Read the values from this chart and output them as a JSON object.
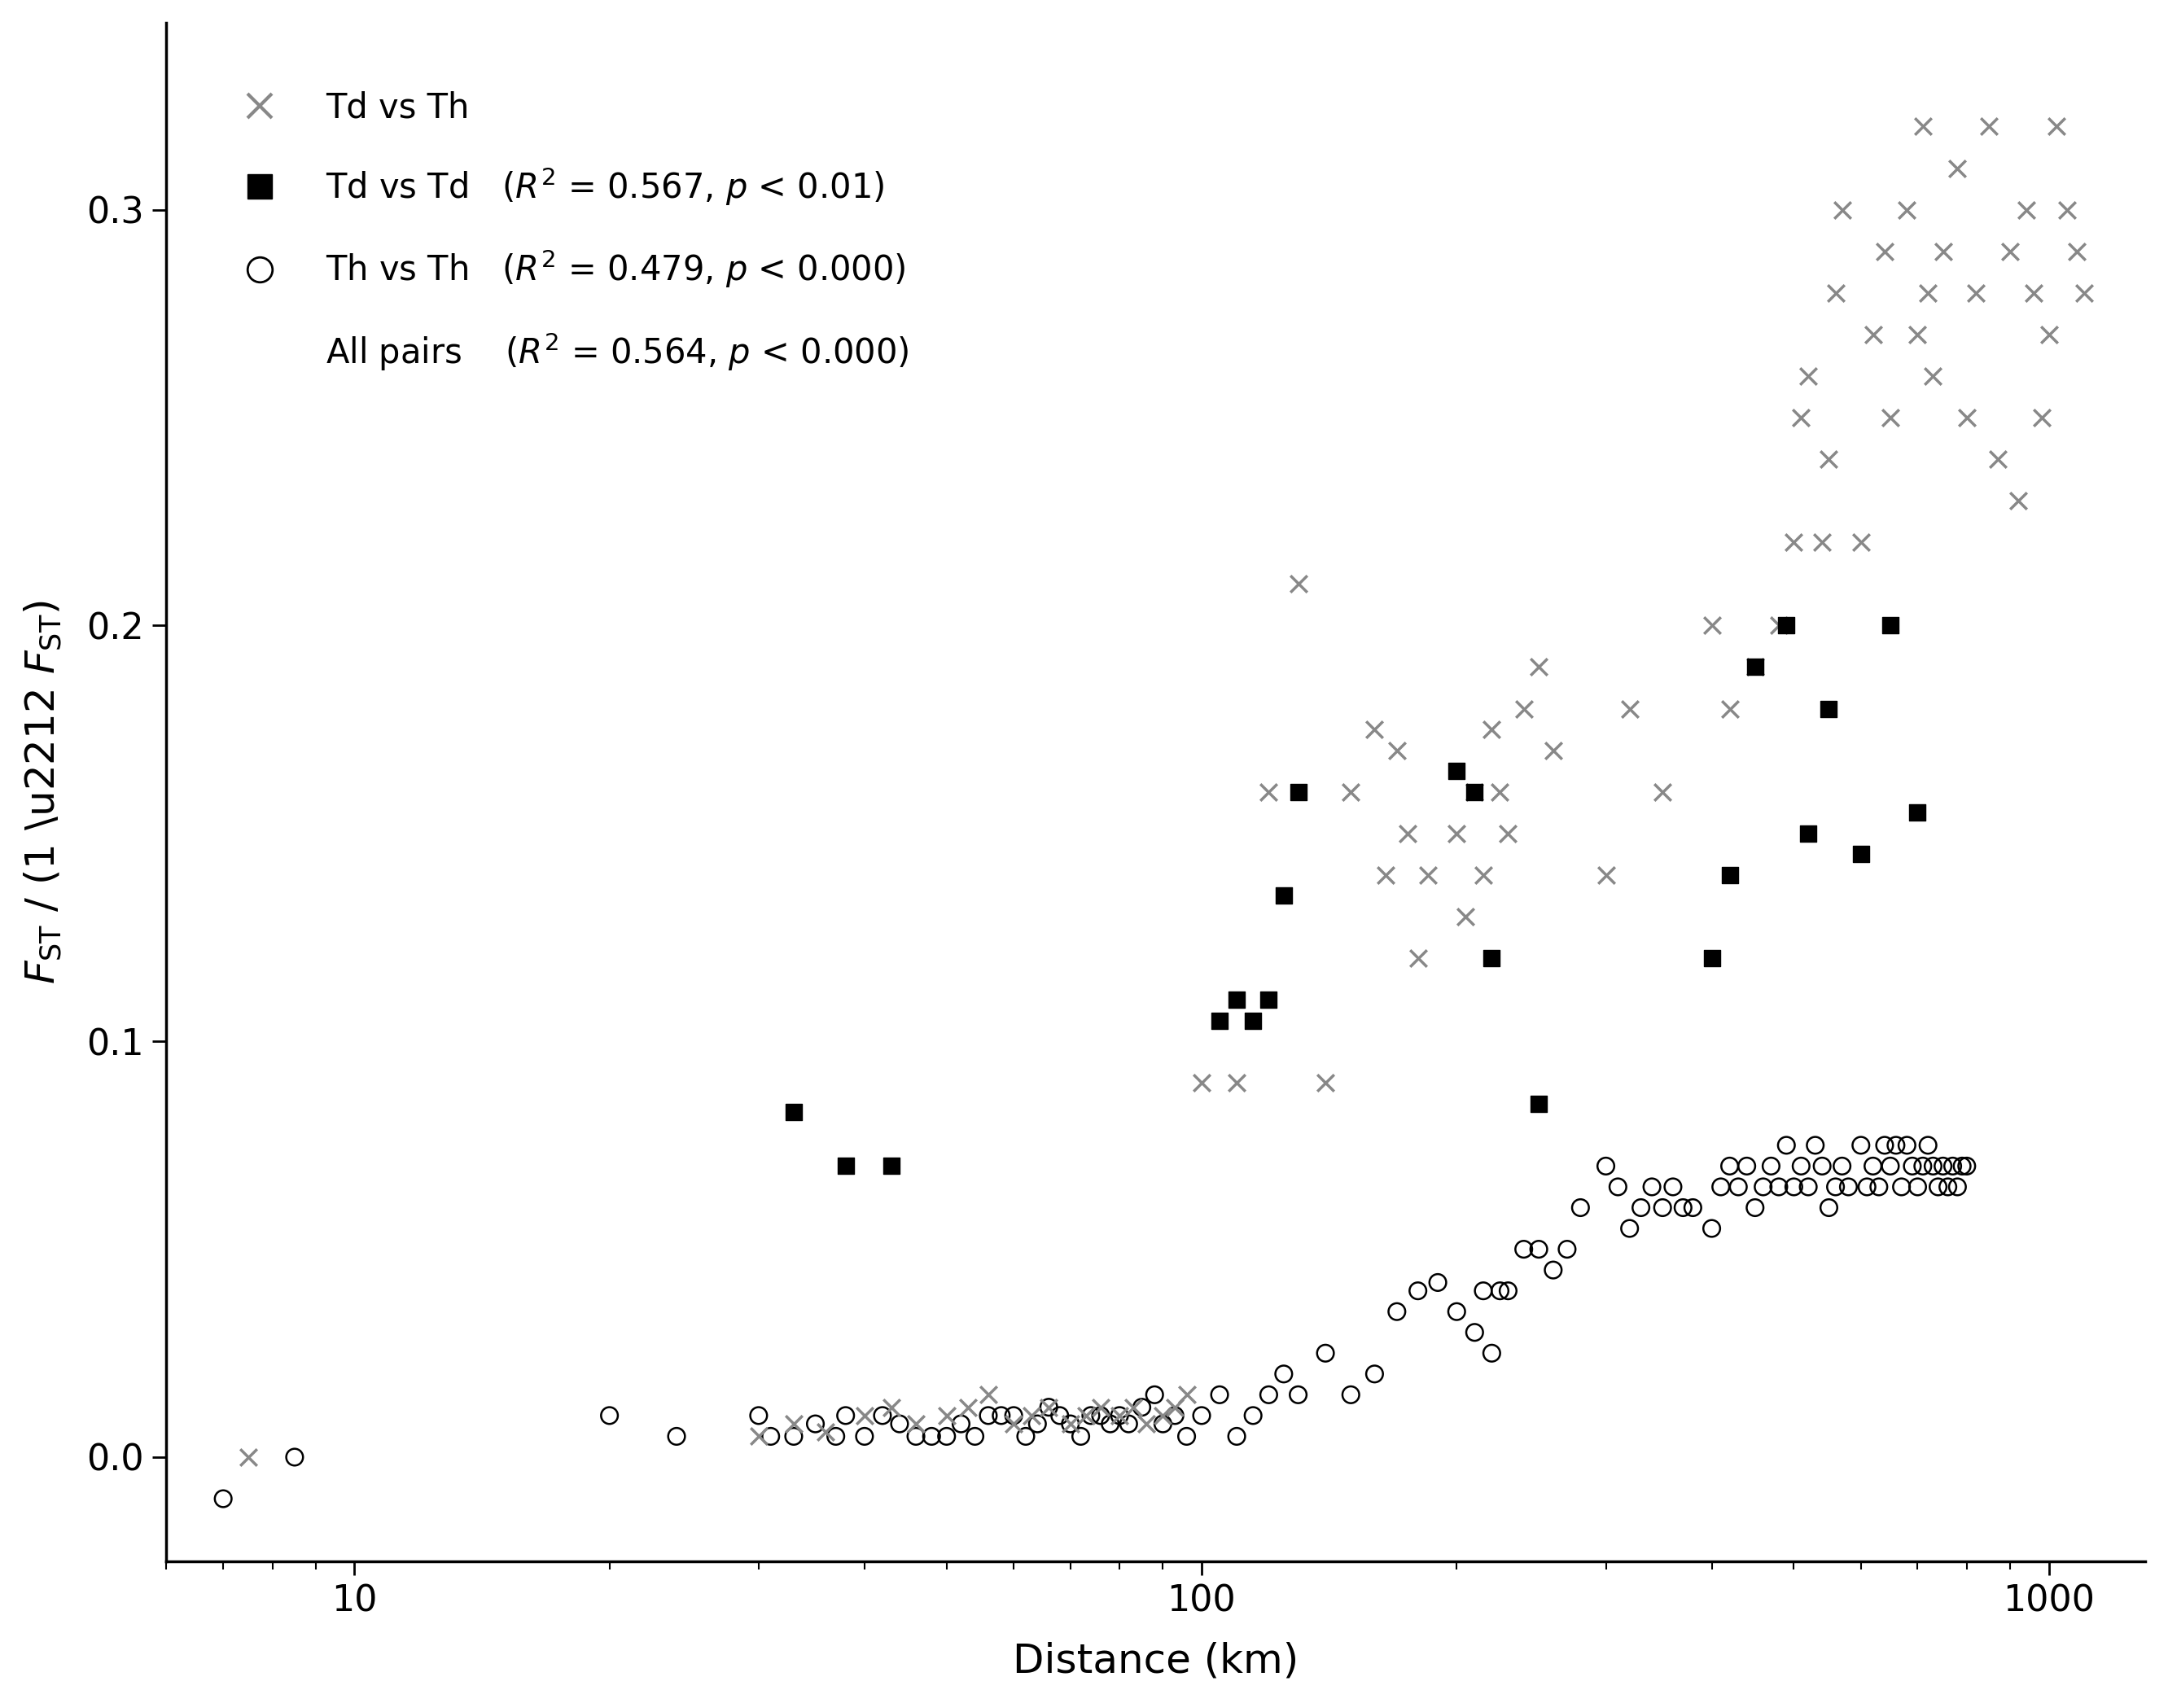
{
  "xlabel": "Distance (km)",
  "xlim": [
    6,
    1300
  ],
  "ylim": [
    -0.025,
    0.345
  ],
  "yticks": [
    0.0,
    0.1,
    0.2,
    0.3
  ],
  "xticks_major": [
    10,
    100,
    1000
  ],
  "legend_x_label": "Td vs Th",
  "legend_sq_label": "Td vs Td   ($R^2$ = 0.567, $p$ < 0.01)",
  "legend_o_label": "Th vs Th   ($R^2$ = 0.479, $p$ < 0.000)",
  "legend_text_label": "All pairs    ($R^2$ = 0.564, $p$ < 0.000)",
  "x_color": "#888888",
  "sq_color": "#000000",
  "o_edgecolor": "#000000",
  "td_vs_th_x": [
    7.5,
    30,
    33,
    36,
    40,
    43,
    46,
    50,
    53,
    56,
    60,
    63,
    66,
    70,
    73,
    76,
    80,
    83,
    86,
    90,
    93,
    96,
    100,
    110,
    120,
    130,
    140,
    150,
    160,
    165,
    170,
    175,
    180,
    185,
    200,
    205,
    210,
    215,
    220,
    225,
    230,
    240,
    250,
    260,
    300,
    320,
    350,
    400,
    420,
    450,
    480,
    500,
    510,
    520,
    540,
    550,
    560,
    570,
    600,
    620,
    640,
    650,
    680,
    700,
    710,
    720,
    730,
    750,
    780,
    800,
    820,
    850,
    870,
    900,
    920,
    940,
    960,
    980,
    1000,
    1020,
    1050,
    1080,
    1100
  ],
  "td_vs_th_y": [
    0.0,
    0.005,
    0.008,
    0.006,
    0.01,
    0.012,
    0.008,
    0.01,
    0.012,
    0.015,
    0.008,
    0.01,
    0.012,
    0.008,
    0.01,
    0.012,
    0.01,
    0.012,
    0.008,
    0.01,
    0.012,
    0.015,
    0.09,
    0.09,
    0.16,
    0.21,
    0.09,
    0.16,
    0.175,
    0.14,
    0.17,
    0.15,
    0.12,
    0.14,
    0.15,
    0.13,
    0.16,
    0.14,
    0.175,
    0.16,
    0.15,
    0.18,
    0.19,
    0.17,
    0.14,
    0.18,
    0.16,
    0.2,
    0.18,
    0.19,
    0.2,
    0.22,
    0.25,
    0.26,
    0.22,
    0.24,
    0.28,
    0.3,
    0.22,
    0.27,
    0.29,
    0.25,
    0.3,
    0.27,
    0.32,
    0.28,
    0.26,
    0.29,
    0.31,
    0.25,
    0.28,
    0.32,
    0.24,
    0.29,
    0.23,
    0.3,
    0.28,
    0.25,
    0.27,
    0.32,
    0.3,
    0.29,
    0.28
  ],
  "td_vs_td_x": [
    33,
    38,
    43,
    105,
    110,
    115,
    120,
    125,
    130,
    200,
    210,
    220,
    250,
    400,
    420,
    450,
    490,
    520,
    550,
    600,
    650,
    700
  ],
  "td_vs_td_y": [
    0.083,
    0.07,
    0.07,
    0.105,
    0.11,
    0.105,
    0.11,
    0.135,
    0.16,
    0.165,
    0.16,
    0.12,
    0.085,
    0.12,
    0.14,
    0.19,
    0.2,
    0.15,
    0.18,
    0.145,
    0.2,
    0.155
  ],
  "th_vs_th_x": [
    7.0,
    8.5,
    20,
    24,
    30,
    31,
    33,
    35,
    37,
    38,
    40,
    42,
    44,
    46,
    48,
    50,
    52,
    54,
    56,
    58,
    60,
    62,
    64,
    66,
    68,
    70,
    72,
    74,
    76,
    78,
    80,
    82,
    85,
    88,
    90,
    93,
    96,
    100,
    105,
    110,
    115,
    120,
    125,
    130,
    140,
    150,
    160,
    170,
    180,
    190,
    200,
    210,
    215,
    220,
    225,
    230,
    240,
    250,
    260,
    270,
    280,
    300,
    310,
    320,
    330,
    340,
    350,
    360,
    370,
    380,
    400,
    410,
    420,
    430,
    440,
    450,
    460,
    470,
    480,
    490,
    500,
    510,
    520,
    530,
    540,
    550,
    560,
    570,
    580,
    600,
    610,
    620,
    630,
    640,
    650,
    660,
    670,
    680,
    690,
    700,
    710,
    720,
    730,
    740,
    750,
    760,
    770,
    780,
    790,
    800
  ],
  "th_vs_th_y": [
    -0.01,
    0.0,
    0.01,
    0.005,
    0.01,
    0.005,
    0.005,
    0.008,
    0.005,
    0.01,
    0.005,
    0.01,
    0.008,
    0.005,
    0.005,
    0.005,
    0.008,
    0.005,
    0.01,
    0.01,
    0.01,
    0.005,
    0.008,
    0.012,
    0.01,
    0.008,
    0.005,
    0.01,
    0.01,
    0.008,
    0.01,
    0.008,
    0.012,
    0.015,
    0.008,
    0.01,
    0.005,
    0.01,
    0.015,
    0.005,
    0.01,
    0.015,
    0.02,
    0.015,
    0.025,
    0.015,
    0.02,
    0.035,
    0.04,
    0.042,
    0.035,
    0.03,
    0.04,
    0.025,
    0.04,
    0.04,
    0.05,
    0.05,
    0.045,
    0.05,
    0.06,
    0.07,
    0.065,
    0.055,
    0.06,
    0.065,
    0.06,
    0.065,
    0.06,
    0.06,
    0.055,
    0.065,
    0.07,
    0.065,
    0.07,
    0.06,
    0.065,
    0.07,
    0.065,
    0.075,
    0.065,
    0.07,
    0.065,
    0.075,
    0.07,
    0.06,
    0.065,
    0.07,
    0.065,
    0.075,
    0.065,
    0.07,
    0.065,
    0.075,
    0.07,
    0.075,
    0.065,
    0.075,
    0.07,
    0.065,
    0.07,
    0.075,
    0.07,
    0.065,
    0.07,
    0.065,
    0.07,
    0.065,
    0.07,
    0.07
  ]
}
